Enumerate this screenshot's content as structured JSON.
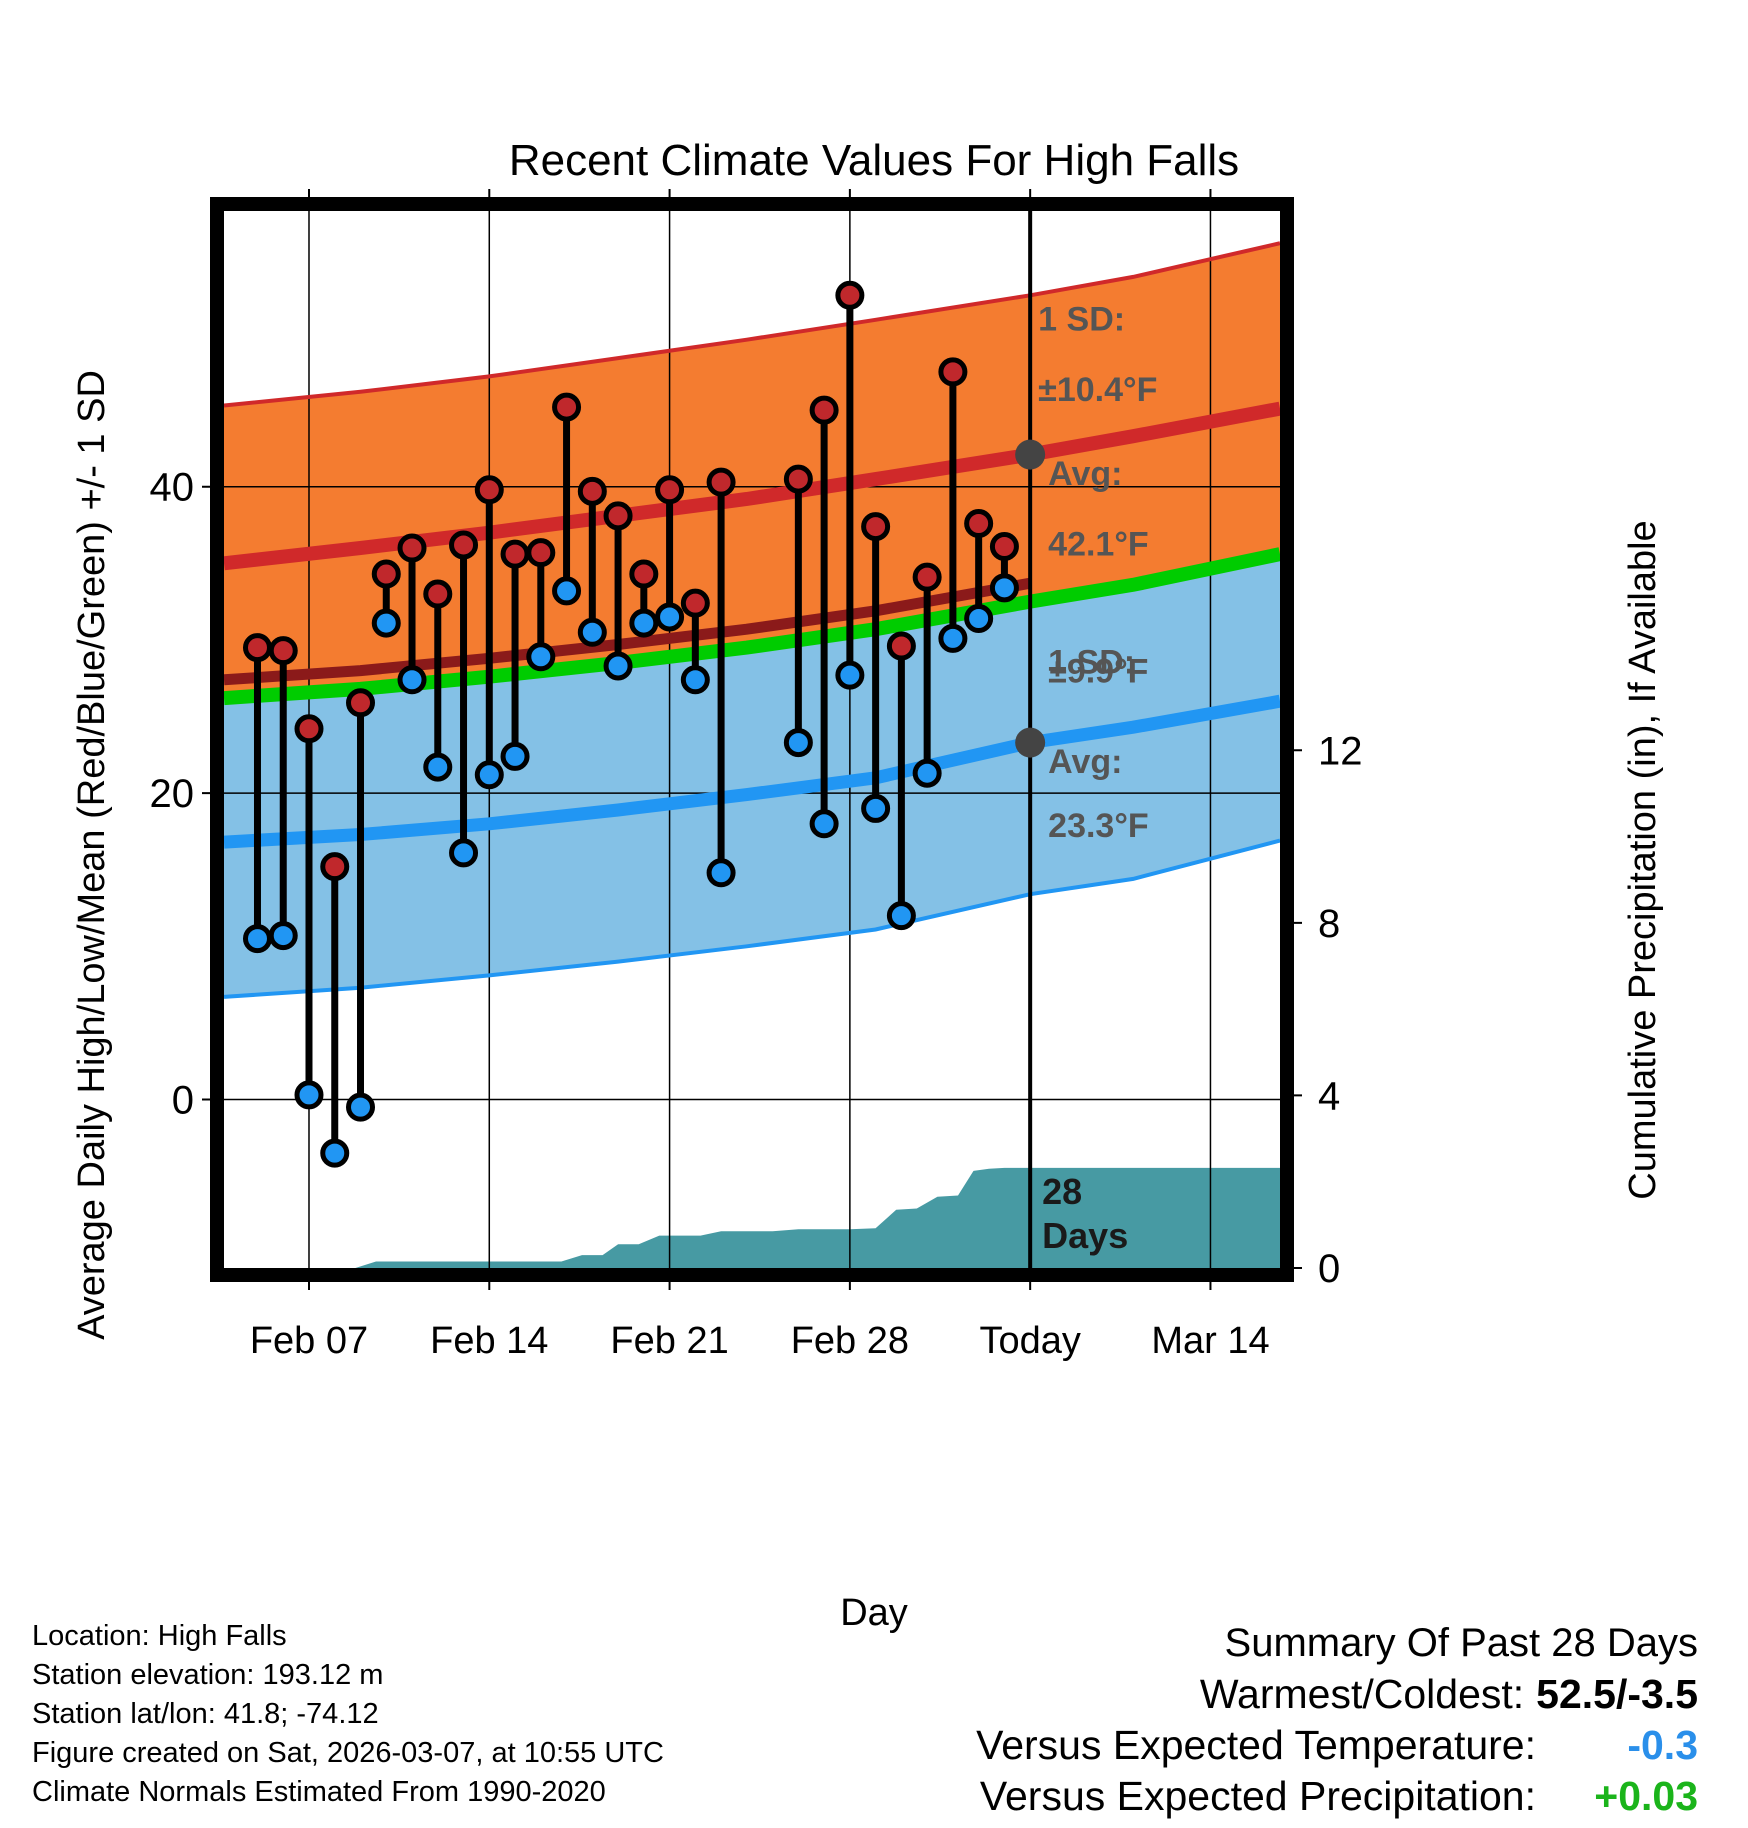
{
  "chart_data": {
    "type": "line",
    "title": "Recent Climate Values For High Falls",
    "xlabel": "Day",
    "ylabel": "Average Daily High/Low/Mean (Red/Blue/Green) +/- 1 SD",
    "y2label": "Cumulative Precipitation (in), If Available",
    "ylim": [
      -11,
      58
    ],
    "y2lim": [
      0,
      24.5
    ],
    "xlim": [
      -0.3,
      40.7
    ],
    "yticks": [
      0,
      20,
      40
    ],
    "ytick_labels": [
      "0",
      "20",
      "40"
    ],
    "y2ticks": [
      0,
      4,
      8,
      12
    ],
    "y2tick_labels": [
      "0",
      "4",
      "8",
      "12"
    ],
    "xticks": [
      3,
      10,
      17,
      24,
      31,
      38
    ],
    "xtick_labels": [
      "Feb 07",
      "Feb 14",
      "Feb 21",
      "Feb 28",
      "Today",
      "Mar 14"
    ],
    "today_index": 31,
    "normals": {
      "x": [
        -0.3,
        5,
        10,
        15,
        20,
        25,
        31,
        35,
        40.7
      ],
      "high_avg": [
        35.0,
        36.0,
        37.0,
        38.1,
        39.2,
        40.5,
        42.1,
        43.3,
        45.1
      ],
      "high_upper": [
        45.3,
        46.2,
        47.2,
        48.4,
        49.6,
        50.9,
        52.5,
        53.7,
        55.9
      ],
      "low_avg": [
        16.8,
        17.3,
        18.0,
        18.9,
        19.9,
        21.0,
        23.3,
        24.3,
        26.0
      ],
      "low_lower": [
        6.7,
        7.3,
        8.1,
        9.0,
        10.0,
        11.1,
        13.4,
        14.4,
        16.9
      ],
      "mean_avg": [
        26.2,
        26.8,
        27.6,
        28.5,
        29.5,
        30.7,
        32.5,
        33.6,
        35.6
      ]
    },
    "series": [
      {
        "name": "Daily High",
        "color": "#c0282c",
        "x": [
          1,
          2,
          3,
          4,
          5,
          6,
          7,
          8,
          9,
          10,
          11,
          12,
          13,
          14,
          15,
          16,
          17,
          18,
          19,
          22,
          23,
          24,
          25,
          26,
          27,
          28,
          29,
          30
        ],
        "values": [
          29.5,
          29.3,
          24.2,
          15.2,
          25.9,
          34.3,
          36.0,
          33.0,
          36.2,
          39.8,
          35.6,
          35.7,
          45.2,
          39.7,
          38.1,
          34.3,
          39.8,
          32.4,
          40.3,
          40.5,
          45.0,
          52.5,
          37.4,
          29.6,
          34.1,
          47.5,
          37.6,
          36.1
        ]
      },
      {
        "name": "Daily Low",
        "color": "#2196f3",
        "x": [
          1,
          2,
          3,
          4,
          5,
          6,
          7,
          8,
          9,
          10,
          11,
          12,
          13,
          14,
          15,
          16,
          17,
          18,
          19,
          22,
          23,
          24,
          25,
          26,
          27,
          28,
          29,
          30
        ],
        "values": [
          10.5,
          10.7,
          0.3,
          -3.5,
          -0.5,
          31.1,
          27.4,
          21.7,
          16.1,
          21.2,
          22.4,
          28.9,
          33.2,
          30.5,
          28.3,
          31.1,
          31.5,
          27.4,
          14.8,
          23.3,
          18.0,
          27.7,
          19.0,
          12.0,
          21.3,
          30.1,
          31.4,
          33.4
        ]
      }
    ],
    "precip": {
      "x": [
        -0.3,
        4.8,
        5.6,
        12.8,
        13.6,
        14.4,
        15.0,
        15.8,
        16.6,
        17.4,
        18.2,
        19.0,
        20.2,
        21.0,
        22.0,
        23.0,
        24.0,
        25.0,
        25.8,
        26.6,
        27.4,
        28.2,
        28.8,
        29.4,
        30.0,
        31.0,
        40.7
      ],
      "values": [
        0.0,
        0.0,
        0.15,
        0.15,
        0.3,
        0.3,
        0.55,
        0.55,
        0.75,
        0.75,
        0.75,
        0.85,
        0.85,
        0.85,
        0.9,
        0.9,
        0.9,
        0.92,
        1.35,
        1.38,
        1.65,
        1.68,
        2.25,
        2.3,
        2.32,
        2.32,
        2.32
      ]
    },
    "annotations": {
      "high_sd_label": "1 SD:",
      "high_sd_value": "±10.4°F",
      "high_avg_label": "Avg:",
      "high_avg_value": "42.1°F",
      "low_sd_label": "1 SD:",
      "low_sd_value": "±9.9°F",
      "low_avg_label": "Avg:",
      "low_avg_value": "23.3°F",
      "days_number": "28",
      "days_label": "Days"
    }
  },
  "footer": {
    "location": "Location: High Falls",
    "elevation": "Station elevation: 193.12 m",
    "latlon": "Station lat/lon: 41.8; -74.12",
    "created": "Figure created on Sat, 2026-03-07, at 10:55 UTC",
    "normals": "Climate Normals Estimated From 1990-2020"
  },
  "summary": {
    "title": "Summary Of Past 28 Days",
    "warmest_label": "Warmest/Coldest:",
    "warmest_value": "52.5/-3.5",
    "temp_label": "Versus Expected Temperature:",
    "temp_value": "-0.3",
    "temp_color": "#2a8fea",
    "precip_label": "Versus Expected Precipitation:",
    "precip_value": "+0.03",
    "precip_color": "#1bb41b"
  },
  "colors": {
    "high_band": "#f47c30",
    "low_band": "#84c1e6",
    "high_line": "#d0292a",
    "low_line": "#2196f3",
    "mean_line": "#00cc00",
    "mean_dark": "#8b1a1a",
    "precip_fill": "#479aa3",
    "annotation_text": "#555555"
  }
}
